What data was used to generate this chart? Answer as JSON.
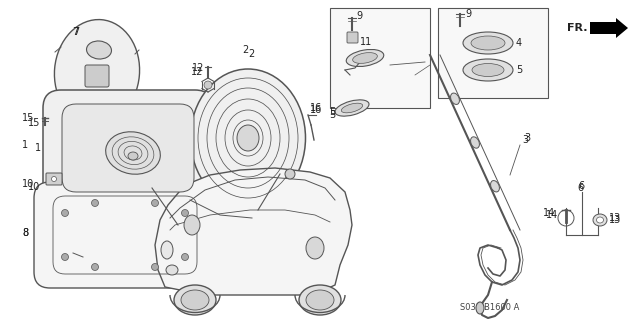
{
  "part_number": "S033-B1600 A",
  "bg_color": "#ffffff",
  "line_color": "#555555",
  "fig_width": 6.4,
  "fig_height": 3.19,
  "dpi": 100
}
